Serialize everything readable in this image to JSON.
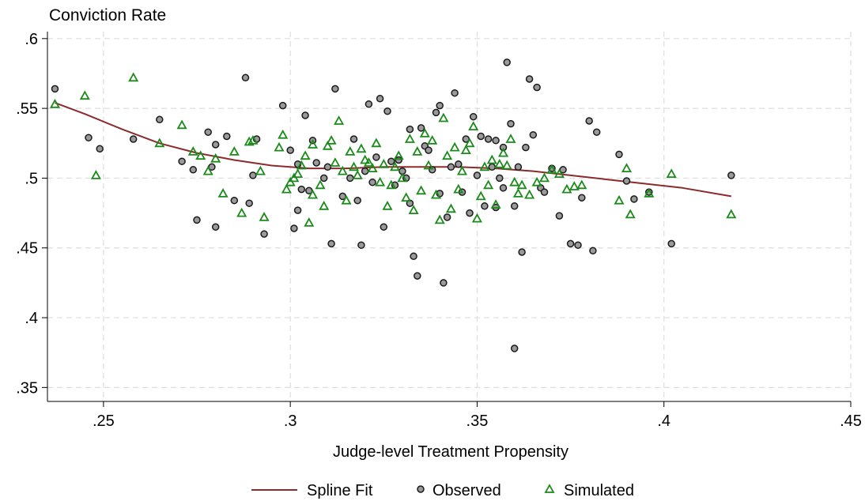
{
  "chart_data": {
    "type": "scatter",
    "title": "Conviction Rate",
    "xlabel": "Judge-level Treatment Propensity",
    "ylabel": "Conviction Rate",
    "xlim": [
      0.235,
      0.45
    ],
    "ylim": [
      0.34,
      0.605
    ],
    "xticks": [
      0.25,
      0.3,
      0.35,
      0.4,
      0.45
    ],
    "xtick_labels": [
      ".25",
      ".3",
      ".35",
      ".4",
      ".45"
    ],
    "yticks": [
      0.35,
      0.4,
      0.45,
      0.5,
      0.55,
      0.6
    ],
    "ytick_labels": [
      ".35",
      ".4",
      ".45",
      ".5",
      ".55",
      ".6"
    ],
    "grid": true,
    "legend_position": "bottom",
    "colors": {
      "spline": "#8b2b2b",
      "observed_fill": "#9a9a9a",
      "observed_edge": "#1a1a1a",
      "simulated": "#1a8a1a",
      "grid": "#dedede"
    },
    "series": [
      {
        "name": "Spline Fit",
        "kind": "line",
        "x": [
          0.237,
          0.245,
          0.255,
          0.265,
          0.275,
          0.285,
          0.295,
          0.305,
          0.315,
          0.325,
          0.335,
          0.345,
          0.355,
          0.365,
          0.375,
          0.385,
          0.395,
          0.405,
          0.418
        ],
        "y": [
          0.554,
          0.546,
          0.535,
          0.525,
          0.518,
          0.513,
          0.509,
          0.507,
          0.507,
          0.508,
          0.508,
          0.508,
          0.507,
          0.505,
          0.502,
          0.499,
          0.496,
          0.493,
          0.487
        ]
      },
      {
        "name": "Observed",
        "kind": "circle",
        "points": [
          [
            0.237,
            0.564
          ],
          [
            0.246,
            0.529
          ],
          [
            0.249,
            0.521
          ],
          [
            0.258,
            0.528
          ],
          [
            0.265,
            0.542
          ],
          [
            0.271,
            0.512
          ],
          [
            0.274,
            0.506
          ],
          [
            0.275,
            0.47
          ],
          [
            0.278,
            0.533
          ],
          [
            0.279,
            0.508
          ],
          [
            0.28,
            0.465
          ],
          [
            0.28,
            0.524
          ],
          [
            0.283,
            0.53
          ],
          [
            0.285,
            0.484
          ],
          [
            0.288,
            0.572
          ],
          [
            0.289,
            0.482
          ],
          [
            0.29,
            0.502
          ],
          [
            0.291,
            0.528
          ],
          [
            0.293,
            0.46
          ],
          [
            0.298,
            0.552
          ],
          [
            0.3,
            0.52
          ],
          [
            0.301,
            0.464
          ],
          [
            0.302,
            0.477
          ],
          [
            0.302,
            0.51
          ],
          [
            0.303,
            0.492
          ],
          [
            0.304,
            0.545
          ],
          [
            0.305,
            0.491
          ],
          [
            0.306,
            0.527
          ],
          [
            0.307,
            0.511
          ],
          [
            0.309,
            0.5
          ],
          [
            0.31,
            0.508
          ],
          [
            0.311,
            0.453
          ],
          [
            0.312,
            0.564
          ],
          [
            0.314,
            0.487
          ],
          [
            0.316,
            0.5
          ],
          [
            0.317,
            0.528
          ],
          [
            0.318,
            0.484
          ],
          [
            0.319,
            0.452
          ],
          [
            0.32,
            0.505
          ],
          [
            0.321,
            0.553
          ],
          [
            0.322,
            0.497
          ],
          [
            0.323,
            0.515
          ],
          [
            0.324,
            0.557
          ],
          [
            0.325,
            0.465
          ],
          [
            0.326,
            0.548
          ],
          [
            0.327,
            0.512
          ],
          [
            0.328,
            0.495
          ],
          [
            0.329,
            0.513
          ],
          [
            0.33,
            0.505
          ],
          [
            0.331,
            0.5
          ],
          [
            0.332,
            0.535
          ],
          [
            0.332,
            0.482
          ],
          [
            0.333,
            0.444
          ],
          [
            0.334,
            0.43
          ],
          [
            0.335,
            0.536
          ],
          [
            0.336,
            0.523
          ],
          [
            0.337,
            0.52
          ],
          [
            0.338,
            0.506
          ],
          [
            0.339,
            0.547
          ],
          [
            0.34,
            0.552
          ],
          [
            0.34,
            0.489
          ],
          [
            0.341,
            0.425
          ],
          [
            0.342,
            0.472
          ],
          [
            0.343,
            0.508
          ],
          [
            0.344,
            0.561
          ],
          [
            0.345,
            0.51
          ],
          [
            0.346,
            0.49
          ],
          [
            0.347,
            0.528
          ],
          [
            0.348,
            0.475
          ],
          [
            0.349,
            0.544
          ],
          [
            0.35,
            0.502
          ],
          [
            0.351,
            0.53
          ],
          [
            0.352,
            0.48
          ],
          [
            0.353,
            0.528
          ],
          [
            0.354,
            0.508
          ],
          [
            0.355,
            0.479
          ],
          [
            0.355,
            0.527
          ],
          [
            0.356,
            0.5
          ],
          [
            0.357,
            0.522
          ],
          [
            0.357,
            0.493
          ],
          [
            0.358,
            0.583
          ],
          [
            0.359,
            0.539
          ],
          [
            0.36,
            0.48
          ],
          [
            0.361,
            0.508
          ],
          [
            0.362,
            0.447
          ],
          [
            0.363,
            0.522
          ],
          [
            0.364,
            0.571
          ],
          [
            0.365,
            0.531
          ],
          [
            0.366,
            0.565
          ],
          [
            0.367,
            0.493
          ],
          [
            0.368,
            0.49
          ],
          [
            0.37,
            0.507
          ],
          [
            0.372,
            0.473
          ],
          [
            0.373,
            0.506
          ],
          [
            0.375,
            0.453
          ],
          [
            0.377,
            0.452
          ],
          [
            0.378,
            0.486
          ],
          [
            0.38,
            0.541
          ],
          [
            0.381,
            0.448
          ],
          [
            0.382,
            0.533
          ],
          [
            0.388,
            0.517
          ],
          [
            0.39,
            0.498
          ],
          [
            0.392,
            0.485
          ],
          [
            0.396,
            0.49
          ],
          [
            0.402,
            0.453
          ],
          [
            0.418,
            0.502
          ],
          [
            0.36,
            0.378
          ]
        ]
      },
      {
        "name": "Simulated",
        "kind": "triangle",
        "points": [
          [
            0.237,
            0.553
          ],
          [
            0.245,
            0.559
          ],
          [
            0.248,
            0.502
          ],
          [
            0.258,
            0.572
          ],
          [
            0.265,
            0.525
          ],
          [
            0.271,
            0.538
          ],
          [
            0.274,
            0.519
          ],
          [
            0.276,
            0.516
          ],
          [
            0.278,
            0.505
          ],
          [
            0.28,
            0.514
          ],
          [
            0.282,
            0.489
          ],
          [
            0.285,
            0.519
          ],
          [
            0.287,
            0.475
          ],
          [
            0.289,
            0.526
          ],
          [
            0.29,
            0.527
          ],
          [
            0.292,
            0.505
          ],
          [
            0.293,
            0.472
          ],
          [
            0.297,
            0.522
          ],
          [
            0.298,
            0.531
          ],
          [
            0.299,
            0.492
          ],
          [
            0.3,
            0.497
          ],
          [
            0.301,
            0.5
          ],
          [
            0.302,
            0.503
          ],
          [
            0.303,
            0.509
          ],
          [
            0.304,
            0.516
          ],
          [
            0.305,
            0.468
          ],
          [
            0.306,
            0.488
          ],
          [
            0.306,
            0.524
          ],
          [
            0.308,
            0.495
          ],
          [
            0.309,
            0.48
          ],
          [
            0.31,
            0.523
          ],
          [
            0.311,
            0.527
          ],
          [
            0.312,
            0.511
          ],
          [
            0.313,
            0.541
          ],
          [
            0.314,
            0.505
          ],
          [
            0.315,
            0.484
          ],
          [
            0.316,
            0.519
          ],
          [
            0.317,
            0.508
          ],
          [
            0.318,
            0.502
          ],
          [
            0.319,
            0.521
          ],
          [
            0.32,
            0.513
          ],
          [
            0.321,
            0.511
          ],
          [
            0.322,
            0.507
          ],
          [
            0.323,
            0.525
          ],
          [
            0.324,
            0.497
          ],
          [
            0.325,
            0.51
          ],
          [
            0.326,
            0.48
          ],
          [
            0.327,
            0.495
          ],
          [
            0.328,
            0.508
          ],
          [
            0.329,
            0.516
          ],
          [
            0.33,
            0.5
          ],
          [
            0.331,
            0.486
          ],
          [
            0.332,
            0.528
          ],
          [
            0.333,
            0.477
          ],
          [
            0.334,
            0.519
          ],
          [
            0.335,
            0.491
          ],
          [
            0.336,
            0.532
          ],
          [
            0.337,
            0.509
          ],
          [
            0.338,
            0.527
          ],
          [
            0.339,
            0.488
          ],
          [
            0.34,
            0.47
          ],
          [
            0.341,
            0.543
          ],
          [
            0.342,
            0.516
          ],
          [
            0.343,
            0.478
          ],
          [
            0.344,
            0.522
          ],
          [
            0.345,
            0.492
          ],
          [
            0.346,
            0.505
          ],
          [
            0.347,
            0.52
          ],
          [
            0.348,
            0.525
          ],
          [
            0.349,
            0.537
          ],
          [
            0.35,
            0.471
          ],
          [
            0.351,
            0.487
          ],
          [
            0.352,
            0.508
          ],
          [
            0.353,
            0.495
          ],
          [
            0.354,
            0.513
          ],
          [
            0.355,
            0.481
          ],
          [
            0.356,
            0.51
          ],
          [
            0.357,
            0.518
          ],
          [
            0.358,
            0.509
          ],
          [
            0.359,
            0.528
          ],
          [
            0.36,
            0.497
          ],
          [
            0.361,
            0.489
          ],
          [
            0.362,
            0.495
          ],
          [
            0.364,
            0.488
          ],
          [
            0.366,
            0.497
          ],
          [
            0.368,
            0.5
          ],
          [
            0.37,
            0.506
          ],
          [
            0.372,
            0.503
          ],
          [
            0.374,
            0.492
          ],
          [
            0.376,
            0.494
          ],
          [
            0.378,
            0.495
          ],
          [
            0.388,
            0.484
          ],
          [
            0.39,
            0.507
          ],
          [
            0.391,
            0.474
          ],
          [
            0.396,
            0.489
          ],
          [
            0.402,
            0.503
          ],
          [
            0.418,
            0.474
          ]
        ]
      }
    ]
  }
}
